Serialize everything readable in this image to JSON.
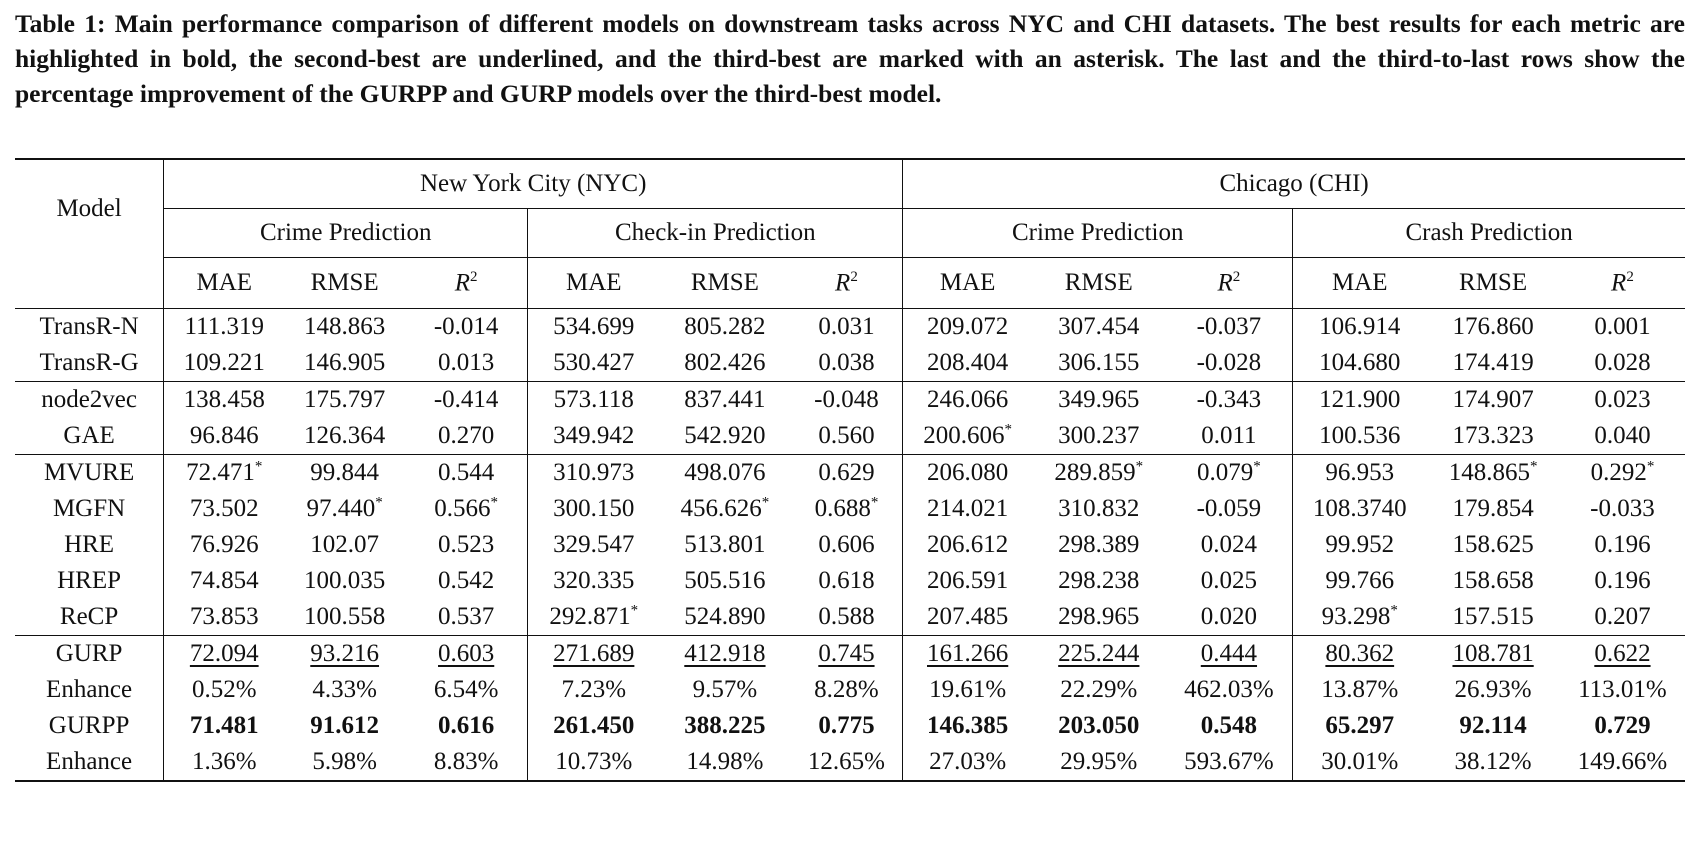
{
  "caption": "Table 1: Main performance comparison of different models on downstream tasks across NYC and CHI datasets. The best results for each metric are highlighted in bold, the second-best are underlined, and the third-best are marked with an asterisk. The last and the third-to-last rows show the percentage improvement of the GURPP and GURP models over the third-best model.",
  "header": {
    "model": "Model",
    "nyc": "New York City (NYC)",
    "chi": "Chicago (CHI)",
    "tasks": [
      "Crime Prediction",
      "Check-in Prediction",
      "Crime Prediction",
      "Crash Prediction"
    ],
    "metrics": [
      "MAE",
      "RMSE",
      "R2",
      "MAE",
      "RMSE",
      "R2",
      "MAE",
      "RMSE",
      "R2",
      "MAE",
      "RMSE",
      "R2"
    ]
  },
  "groups": [
    [
      {
        "model": "TransR-N",
        "values": [
          "111.319",
          "148.863",
          "-0.014",
          "534.699",
          "805.282",
          "0.031",
          "209.072",
          "307.454",
          "-0.037",
          "106.914",
          "176.860",
          "0.001"
        ]
      },
      {
        "model": "TransR-G",
        "values": [
          "109.221",
          "146.905",
          "0.013",
          "530.427",
          "802.426",
          "0.038",
          "208.404",
          "306.155",
          "-0.028",
          "104.680",
          "174.419",
          "0.028"
        ]
      }
    ],
    [
      {
        "model": "node2vec",
        "values": [
          "138.458",
          "175.797",
          "-0.414",
          "573.118",
          "837.441",
          "-0.048",
          "246.066",
          "349.965",
          "-0.343",
          "121.900",
          "174.907",
          "0.023"
        ]
      },
      {
        "model": "GAE",
        "values": [
          "96.846",
          "126.364",
          "0.270",
          "349.942",
          "542.920",
          "0.560",
          "200.606*",
          "300.237",
          "0.011",
          "100.536",
          "173.323",
          "0.040"
        ]
      }
    ],
    [
      {
        "model": "MVURE",
        "values": [
          "72.471*",
          "99.844",
          "0.544",
          "310.973",
          "498.076",
          "0.629",
          "206.080",
          "289.859*",
          "0.079*",
          "96.953",
          "148.865*",
          "0.292*"
        ]
      },
      {
        "model": "MGFN",
        "values": [
          "73.502",
          "97.440*",
          "0.566*",
          "300.150",
          "456.626*",
          "0.688*",
          "214.021",
          "310.832",
          "-0.059",
          "108.3740",
          "179.854",
          "-0.033"
        ]
      },
      {
        "model": "HRE",
        "values": [
          "76.926",
          "102.07",
          "0.523",
          "329.547",
          "513.801",
          "0.606",
          "206.612",
          "298.389",
          "0.024",
          "99.952",
          "158.625",
          "0.196"
        ]
      },
      {
        "model": "HREP",
        "values": [
          "74.854",
          "100.035",
          "0.542",
          "320.335",
          "505.516",
          "0.618",
          "206.591",
          "298.238",
          "0.025",
          "99.766",
          "158.658",
          "0.196"
        ]
      },
      {
        "model": "ReCP",
        "values": [
          "73.853",
          "100.558",
          "0.537",
          "292.871*",
          "524.890",
          "0.588",
          "207.485",
          "298.965",
          "0.020",
          "93.298*",
          "157.515",
          "0.207"
        ]
      }
    ],
    [
      {
        "model": "GURP",
        "style": "underline",
        "values": [
          "72.094",
          "93.216",
          "0.603",
          "271.689",
          "412.918",
          "0.745",
          "161.266",
          "225.244",
          "0.444",
          "80.362",
          "108.781",
          "0.622"
        ]
      },
      {
        "model": "Enhance",
        "values": [
          "0.52%",
          "4.33%",
          "6.54%",
          "7.23%",
          "9.57%",
          "8.28%",
          "19.61%",
          "22.29%",
          "462.03%",
          "13.87%",
          "26.93%",
          "113.01%"
        ]
      },
      {
        "model": "GURPP",
        "style": "bold",
        "values": [
          "71.481",
          "91.612",
          "0.616",
          "261.450",
          "388.225",
          "0.775",
          "146.385",
          "203.050",
          "0.548",
          "65.297",
          "92.114",
          "0.729"
        ]
      },
      {
        "model": "Enhance",
        "values": [
          "1.36%",
          "5.98%",
          "8.83%",
          "10.73%",
          "14.98%",
          "12.65%",
          "27.03%",
          "29.95%",
          "593.67%",
          "30.01%",
          "38.12%",
          "149.66%"
        ]
      }
    ]
  ]
}
